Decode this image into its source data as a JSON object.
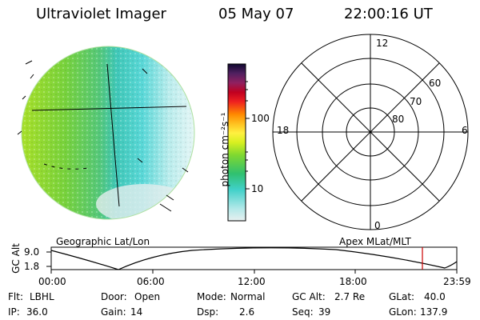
{
  "header": {
    "instrument": "Ultraviolet Imager",
    "date": "05 May 07",
    "time": "22:00:16 UT"
  },
  "colorbar": {
    "unit_label": "photon cm⁻²s⁻¹",
    "ticks": [
      "100",
      "10"
    ]
  },
  "polar_plot": {
    "mlt_labels": [
      "12",
      "18",
      "6",
      "0"
    ],
    "mlat_labels": [
      "60",
      "70",
      "80"
    ]
  },
  "image_labels": {
    "left": "Geographic Lat/Lon",
    "right": "Apex MLat/MLT"
  },
  "altitude_plot": {
    "ylabel": "GC Alt",
    "y_ticks": [
      "9.0",
      "1.8"
    ],
    "x_ticks": [
      "00:00",
      "06:00",
      "12:00",
      "18:00",
      "23:59"
    ],
    "current_time_marker": "22:00:16"
  },
  "info": {
    "flt_label": "Flt:",
    "flt_value": "LBHL",
    "ip_label": "IP:",
    "ip_value": "36.0",
    "door_label": "Door:",
    "door_value": "Open",
    "gain_label": "Gain:",
    "gain_value": "14",
    "mode_label": "Mode:",
    "mode_value": "Normal",
    "dsp_label": "Dsp:",
    "dsp_value": "2.6",
    "gcalt_label": "GC Alt:",
    "gcalt_value": "2.7 Re",
    "seq_label": "Seq:",
    "seq_value": "39",
    "glat_label": "GLat:",
    "glat_value": "40.0",
    "glon_label": "GLon:",
    "glon_value": "137.9"
  },
  "colors": {
    "marker": "#cc0000",
    "grid": "#000000"
  }
}
